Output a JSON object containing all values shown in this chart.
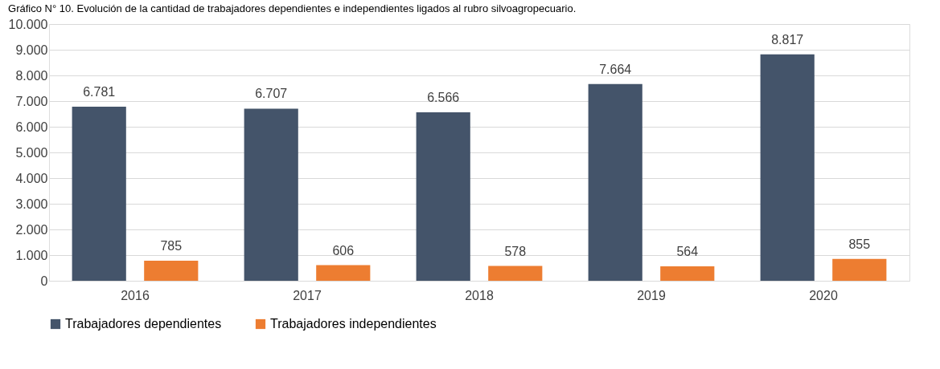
{
  "chart_data": {
    "type": "bar",
    "title": "Gráfico N° 10. Evolución de la cantidad de trabajadores dependientes e independientes ligados al rubro silvoagropecuario.",
    "categories": [
      "2016",
      "2017",
      "2018",
      "2019",
      "2020"
    ],
    "series": [
      {
        "name": "Trabajadores dependientes",
        "color": "#44546a",
        "values": [
          6781,
          6707,
          6566,
          7664,
          8817
        ],
        "value_labels": [
          "6.781",
          "6.707",
          "6.566",
          "7.664",
          "8.817"
        ]
      },
      {
        "name": "Trabajadores independientes",
        "color": "#ed7d31",
        "values": [
          785,
          606,
          578,
          564,
          855
        ],
        "value_labels": [
          "785",
          "606",
          "578",
          "564",
          "855"
        ]
      }
    ],
    "ylim": [
      0,
      10000
    ],
    "yticks": [
      {
        "value": 0,
        "label": "0"
      },
      {
        "value": 1000,
        "label": "1.000"
      },
      {
        "value": 2000,
        "label": "2.000"
      },
      {
        "value": 3000,
        "label": "3.000"
      },
      {
        "value": 4000,
        "label": "4.000"
      },
      {
        "value": 5000,
        "label": "5.000"
      },
      {
        "value": 6000,
        "label": "6.000"
      },
      {
        "value": 7000,
        "label": "7.000"
      },
      {
        "value": 8000,
        "label": "8.000"
      },
      {
        "value": 9000,
        "label": "9.000"
      },
      {
        "value": 10000,
        "label": "10.000"
      }
    ],
    "grid": "y",
    "legend": "bottom"
  }
}
